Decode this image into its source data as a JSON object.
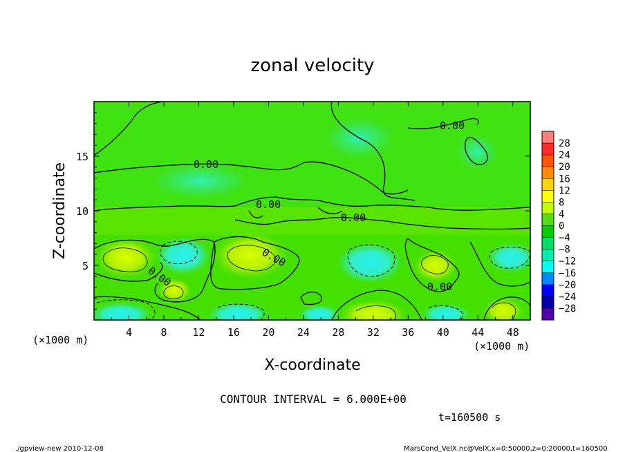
{
  "chart_data": {
    "type": "heatmap",
    "title": "zonal velocity",
    "xlabel": "X-coordinate",
    "ylabel": "Z-coordinate",
    "x_unit": "(×1000 m)",
    "y_unit": "(×1000 m)",
    "x_range": [
      0,
      50
    ],
    "y_range": [
      0,
      20
    ],
    "x_ticks": [
      "4",
      "8",
      "12",
      "16",
      "20",
      "24",
      "28",
      "32",
      "36",
      "40",
      "44",
      "48"
    ],
    "y_ticks": [
      "5",
      "10",
      "15"
    ],
    "contour_label": "0.00",
    "contour_interval_text": "CONTOUR INTERVAL = 6.000E+00",
    "time_text": "t=160500 s",
    "colorbar": {
      "labels": [
        "28",
        "24",
        "20",
        "16",
        "12",
        "8",
        "4",
        "0",
        "−4",
        "−8",
        "−12",
        "−16",
        "−20",
        "−24",
        "−28"
      ],
      "colors": [
        "#ff7f7f",
        "#ff2a2a",
        "#ff5500",
        "#ff8c00",
        "#ffd500",
        "#ffff00",
        "#bfff00",
        "#55dd11",
        "#00cc00",
        "#00dd66",
        "#00eeaa",
        "#00ffff",
        "#0088ff",
        "#0000ff",
        "#0000aa",
        "#5500aa"
      ]
    }
  },
  "footer": {
    "left": "./gpview-new  2010-12-08",
    "right": "MarsCond_VelX.nc@VelX,x=0:50000,z=0:20000,t=160500"
  }
}
